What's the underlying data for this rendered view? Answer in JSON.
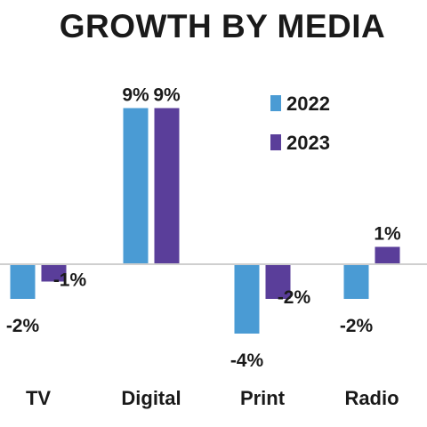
{
  "chart_data": {
    "type": "bar",
    "title": "GROWTH BY MEDIA",
    "categories": [
      "TV",
      "Digital",
      "Print",
      "Radio"
    ],
    "series": [
      {
        "name": "2022",
        "values": [
          -2,
          9,
          -4,
          -2
        ],
        "labels": [
          "-2%",
          "9%",
          "-4%",
          "-2%"
        ],
        "color": "#4a9bd4"
      },
      {
        "name": "2023",
        "values": [
          -1,
          9,
          -2,
          1
        ],
        "labels": [
          "-1%",
          "9%",
          "-2%",
          "1%"
        ],
        "color": "#5a3e9a"
      }
    ],
    "ylim": [
      -4,
      9
    ],
    "unit": "%",
    "legend_position": "top-right",
    "grid": false,
    "axis_line_color": "#cfcfcf",
    "xlabel": "",
    "ylabel": ""
  }
}
